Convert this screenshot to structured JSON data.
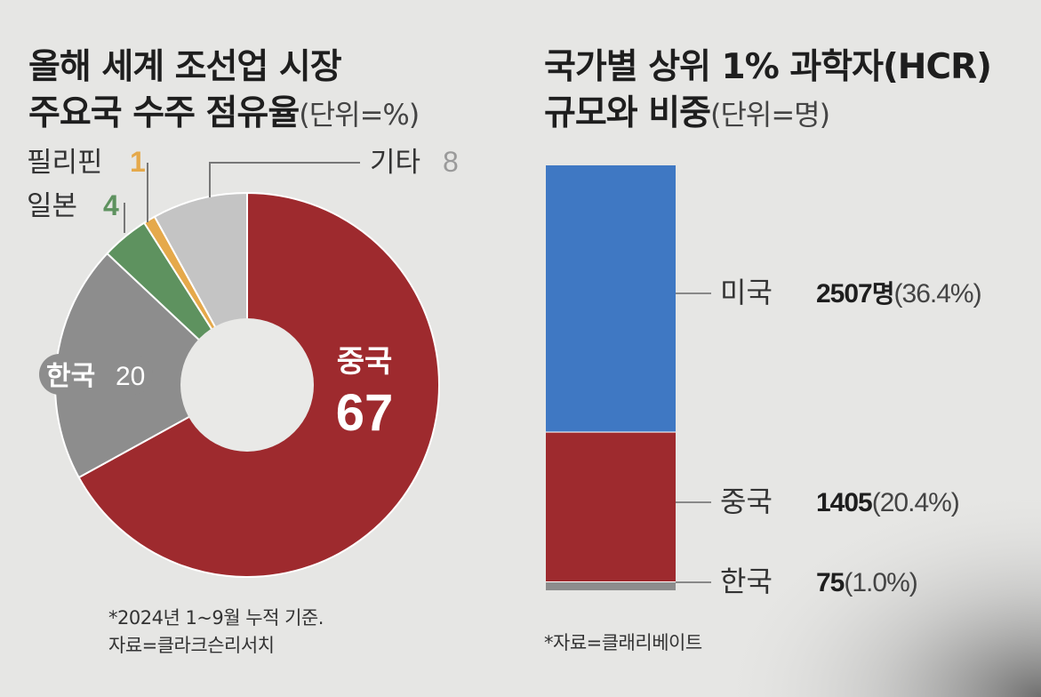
{
  "colors": {
    "china": "#9e2a2e",
    "korea": "#8d8d8d",
    "japan": "#5e925f",
    "philippines": "#e5a94b",
    "other": "#c4c4c4",
    "usa": "#3f78c3",
    "hole": "#e9e9e7"
  },
  "chart_data": [
    {
      "type": "pie",
      "title_line1": "올해 세계 조선업 시장",
      "title_line2": "주요국 수주 점유율",
      "unit": "(단위=%)",
      "slices": [
        {
          "name": "중국",
          "value": 67,
          "color": "#9e2a2e"
        },
        {
          "name": "한국",
          "value": 20,
          "color": "#8d8d8d"
        },
        {
          "name": "일본",
          "value": 4,
          "color": "#5e925f"
        },
        {
          "name": "필리핀",
          "value": 1,
          "color": "#e5a94b"
        },
        {
          "name": "기타",
          "value": 8,
          "color": "#c4c4c4"
        }
      ],
      "note_line1": "*2024년 1~9월 누적 기준.",
      "note_line2": "자료=클라크슨리서치"
    },
    {
      "type": "bar",
      "stacked": true,
      "title_line1": "국가별 상위 1% 과학자(HCR)",
      "title_line2": "규모와 비중",
      "unit": "(단위=명)",
      "segments": [
        {
          "name": "미국",
          "value": 2507,
          "unit_label": "명",
          "share": "(36.4%)",
          "color": "#3f78c3"
        },
        {
          "name": "중국",
          "value": 1405,
          "unit_label": "",
          "share": "(20.4%)",
          "color": "#9e2a2e"
        },
        {
          "name": "한국",
          "value": 75,
          "unit_label": "",
          "share": "(1.0%)",
          "color": "#8d8d8d"
        }
      ],
      "note": "*자료=클래리베이트"
    }
  ]
}
